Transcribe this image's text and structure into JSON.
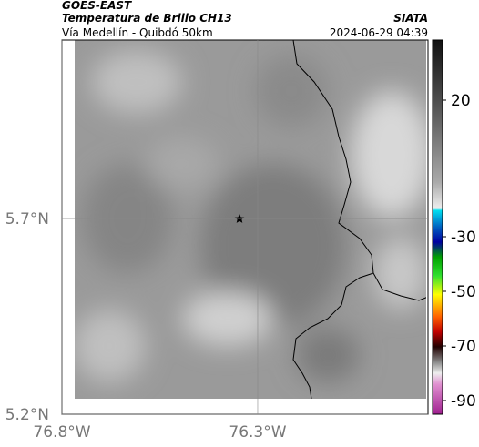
{
  "header": {
    "source": "GOES-EAST",
    "product": "Temperatura de Brillo CH13",
    "region": "Vía Medellín - Quibdó 50km",
    "agency": "SIATA",
    "datetime": "2024-06-29 04:39"
  },
  "map": {
    "xlim": [
      -76.8,
      -75.865
    ],
    "ylim": [
      5.2,
      6.156
    ],
    "xticks": [
      {
        "value": -76.8,
        "label": "76.8°W"
      },
      {
        "value": -76.3,
        "label": "76.3°W"
      }
    ],
    "yticks": [
      {
        "value": 5.7,
        "label": "5.7°N"
      },
      {
        "value": 5.2,
        "label": "5.2°N"
      }
    ],
    "grid": true
  },
  "colorbar": {
    "lim": [
      42,
      -95
    ],
    "ticks": [
      20,
      -30,
      -50,
      -70,
      -90
    ]
  }
}
